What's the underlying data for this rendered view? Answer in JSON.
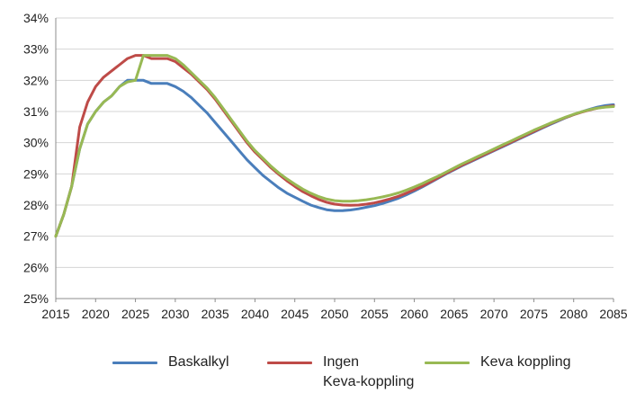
{
  "chart_data": {
    "type": "line",
    "title": "",
    "xlabel": "",
    "ylabel": "",
    "xlim": [
      2015,
      2085
    ],
    "ylim": [
      25,
      34
    ],
    "grid": true,
    "legend_position": "bottom",
    "x_ticks": [
      "2015",
      "2020",
      "2025",
      "2030",
      "2035",
      "2040",
      "2045",
      "2050",
      "2055",
      "2060",
      "2065",
      "2070",
      "2075",
      "2080",
      "2085"
    ],
    "y_ticks": [
      "25%",
      "26%",
      "27%",
      "28%",
      "29%",
      "30%",
      "31%",
      "32%",
      "33%",
      "34%"
    ],
    "x": [
      2015,
      2016,
      2017,
      2018,
      2019,
      2020,
      2021,
      2022,
      2023,
      2024,
      2025,
      2026,
      2027,
      2028,
      2029,
      2030,
      2031,
      2032,
      2033,
      2034,
      2035,
      2036,
      2037,
      2038,
      2039,
      2040,
      2041,
      2042,
      2043,
      2044,
      2045,
      2046,
      2047,
      2048,
      2049,
      2050,
      2051,
      2052,
      2053,
      2054,
      2055,
      2056,
      2057,
      2058,
      2059,
      2060,
      2061,
      2062,
      2063,
      2064,
      2065,
      2066,
      2067,
      2068,
      2069,
      2070,
      2071,
      2072,
      2073,
      2074,
      2075,
      2076,
      2077,
      2078,
      2079,
      2080,
      2081,
      2082,
      2083,
      2084,
      2085
    ],
    "series": [
      {
        "name": "Baskalkyl",
        "color": "#4a7ebb",
        "values": [
          27.0,
          27.7,
          28.6,
          29.8,
          30.6,
          31.0,
          31.3,
          31.5,
          31.8,
          32.0,
          32.0,
          32.0,
          31.9,
          31.9,
          31.9,
          31.8,
          31.65,
          31.45,
          31.2,
          30.95,
          30.65,
          30.35,
          30.05,
          29.75,
          29.45,
          29.2,
          28.95,
          28.75,
          28.55,
          28.38,
          28.25,
          28.12,
          28.0,
          27.92,
          27.85,
          27.82,
          27.82,
          27.84,
          27.88,
          27.93,
          27.98,
          28.05,
          28.13,
          28.22,
          28.33,
          28.45,
          28.58,
          28.72,
          28.86,
          29.0,
          29.13,
          29.26,
          29.38,
          29.5,
          29.62,
          29.74,
          29.86,
          29.98,
          30.1,
          30.22,
          30.34,
          30.46,
          30.58,
          30.69,
          30.8,
          30.9,
          30.99,
          31.07,
          31.14,
          31.19,
          31.22
        ]
      },
      {
        "name": "Ingen Keva-koppling",
        "color": "#be4b48",
        "values": [
          27.0,
          27.7,
          28.6,
          30.5,
          31.3,
          31.8,
          32.1,
          32.3,
          32.5,
          32.7,
          32.8,
          32.8,
          32.7,
          32.7,
          32.7,
          32.6,
          32.4,
          32.2,
          31.95,
          31.7,
          31.4,
          31.05,
          30.7,
          30.35,
          30.0,
          29.7,
          29.45,
          29.2,
          28.98,
          28.78,
          28.6,
          28.43,
          28.3,
          28.18,
          28.09,
          28.03,
          28.0,
          27.99,
          28.0,
          28.03,
          28.07,
          28.13,
          28.2,
          28.28,
          28.38,
          28.49,
          28.61,
          28.74,
          28.88,
          29.02,
          29.15,
          29.28,
          29.4,
          29.52,
          29.64,
          29.76,
          29.88,
          30.0,
          30.12,
          30.24,
          30.36,
          30.48,
          30.6,
          30.71,
          30.81,
          30.9,
          30.98,
          31.05,
          31.11,
          31.15,
          31.18
        ]
      },
      {
        "name": "Keva koppling",
        "color": "#98b954",
        "values": [
          27.0,
          27.7,
          28.6,
          29.8,
          30.6,
          31.0,
          31.3,
          31.5,
          31.8,
          31.95,
          32.0,
          32.8,
          32.8,
          32.8,
          32.8,
          32.7,
          32.5,
          32.25,
          32.0,
          31.75,
          31.45,
          31.1,
          30.75,
          30.4,
          30.05,
          29.75,
          29.5,
          29.25,
          29.03,
          28.84,
          28.67,
          28.51,
          28.38,
          28.27,
          28.19,
          28.14,
          28.12,
          28.12,
          28.14,
          28.17,
          28.21,
          28.26,
          28.32,
          28.39,
          28.48,
          28.58,
          28.69,
          28.81,
          28.93,
          29.06,
          29.19,
          29.32,
          29.44,
          29.56,
          29.68,
          29.8,
          29.92,
          30.04,
          30.16,
          30.28,
          30.4,
          30.51,
          30.62,
          30.72,
          30.82,
          30.91,
          30.99,
          31.06,
          31.11,
          31.14,
          31.16
        ]
      }
    ]
  },
  "legend": {
    "baskalkyl_line1": "Baskalkyl",
    "ingen_line1": "Ingen",
    "ingen_line2": "Keva-koppling",
    "keva_line1": "Keva koppling"
  }
}
